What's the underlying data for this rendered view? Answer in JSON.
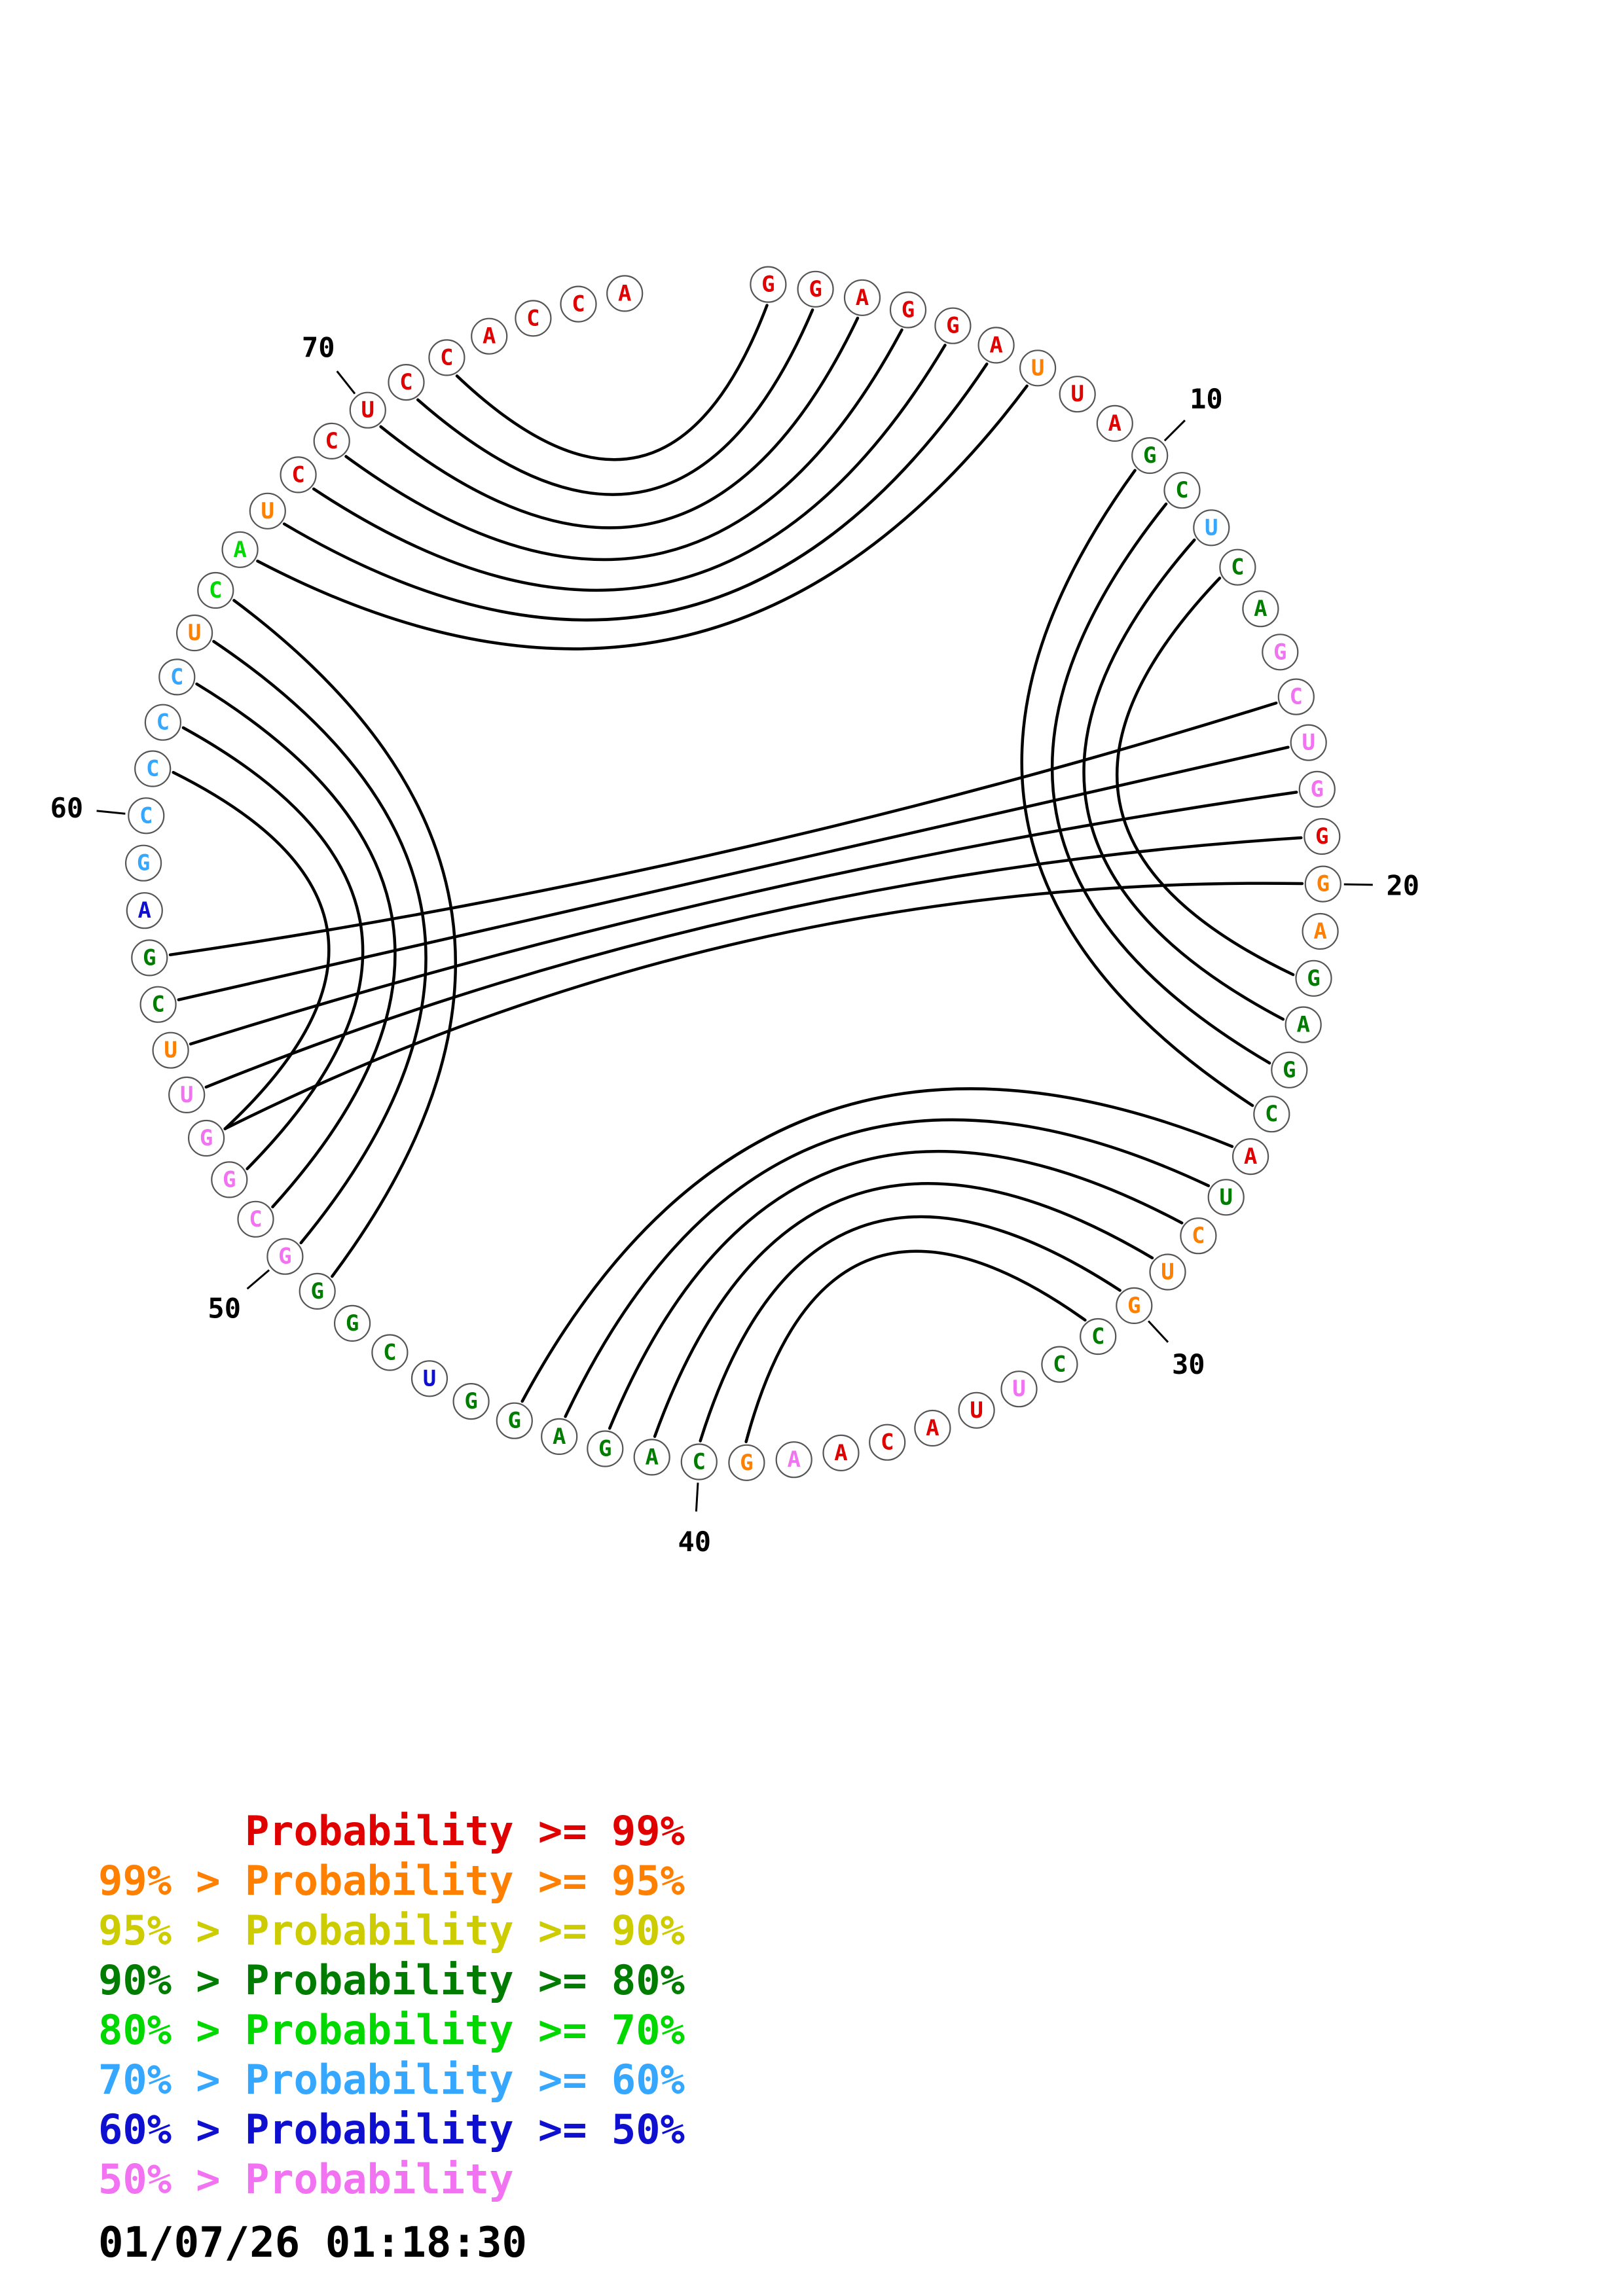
{
  "palette": {
    "red": "#e00000",
    "orange": "#ff7f00",
    "yellow": "#cccc00",
    "dgreen": "#007c00",
    "green": "#00d800",
    "sky": "#35a7ff",
    "blue": "#0f0fd0",
    "pink": "#f173f1",
    "arc": "#000000",
    "ring_outline": "#555555"
  },
  "plot": {
    "sequence": [
      "G",
      "G",
      "A",
      "G",
      "G",
      "A",
      "U",
      "U",
      "A",
      "G",
      "C",
      "U",
      "C",
      "A",
      "G",
      "C",
      "U",
      "G",
      "G",
      "G",
      "A",
      "G",
      "A",
      "G",
      "C",
      "A",
      "U",
      "C",
      "U",
      "G",
      "C",
      "C",
      "U",
      "U",
      "A",
      "C",
      "A",
      "A",
      "G",
      "C",
      "A",
      "G",
      "A",
      "G",
      "G",
      "U",
      "C",
      "G",
      "G",
      "G",
      "C",
      "G",
      "G",
      "U",
      "U",
      "C",
      "G",
      "A",
      "G",
      "C",
      "C",
      "C",
      "C",
      "U",
      "C",
      "A",
      "U",
      "C",
      "C",
      "U",
      "C",
      "C",
      "A",
      "C",
      "C",
      "A"
    ],
    "colors": [
      "red",
      "red",
      "red",
      "red",
      "red",
      "red",
      "orange",
      "red",
      "red",
      "dgreen",
      "dgreen",
      "sky",
      "dgreen",
      "dgreen",
      "pink",
      "pink",
      "pink",
      "pink",
      "red",
      "orange",
      "orange",
      "dgreen",
      "dgreen",
      "dgreen",
      "dgreen",
      "red",
      "dgreen",
      "orange",
      "orange",
      "orange",
      "dgreen",
      "dgreen",
      "pink",
      "red",
      "red",
      "red",
      "red",
      "pink",
      "orange",
      "dgreen",
      "dgreen",
      "dgreen",
      "dgreen",
      "dgreen",
      "dgreen",
      "blue",
      "dgreen",
      "dgreen",
      "dgreen",
      "pink",
      "pink",
      "pink",
      "pink",
      "pink",
      "orange",
      "dgreen",
      "dgreen",
      "blue",
      "sky",
      "sky",
      "sky",
      "sky",
      "sky",
      "orange",
      "green",
      "green",
      "orange",
      "red",
      "red",
      "red",
      "red",
      "red",
      "red",
      "red",
      "red",
      "red"
    ],
    "pairs": [
      [
        1,
        72
      ],
      [
        2,
        71
      ],
      [
        3,
        70
      ],
      [
        4,
        69
      ],
      [
        5,
        68
      ],
      [
        6,
        67
      ],
      [
        7,
        66
      ],
      [
        10,
        25
      ],
      [
        11,
        24
      ],
      [
        12,
        23
      ],
      [
        13,
        22
      ],
      [
        16,
        57
      ],
      [
        17,
        56
      ],
      [
        18,
        55
      ],
      [
        19,
        54
      ],
      [
        20,
        53
      ],
      [
        26,
        44
      ],
      [
        27,
        43
      ],
      [
        28,
        42
      ],
      [
        29,
        41
      ],
      [
        30,
        40
      ],
      [
        31,
        39
      ],
      [
        49,
        65
      ],
      [
        50,
        64
      ],
      [
        51,
        63
      ],
      [
        52,
        62
      ],
      [
        53,
        61
      ]
    ],
    "tick_labels": [
      {
        "pos": 10,
        "text": "10"
      },
      {
        "pos": 20,
        "text": "20"
      },
      {
        "pos": 30,
        "text": "30"
      },
      {
        "pos": 40,
        "text": "40"
      },
      {
        "pos": 50,
        "text": "50"
      },
      {
        "pos": 60,
        "text": "60"
      },
      {
        "pos": 70,
        "text": "70"
      }
    ]
  },
  "legend": {
    "items": [
      {
        "text": "      Probability >= 99%",
        "color": "red"
      },
      {
        "text": "99% > Probability >= 95%",
        "color": "orange"
      },
      {
        "text": "95% > Probability >= 90%",
        "color": "yellow"
      },
      {
        "text": "90% > Probability >= 80%",
        "color": "dgreen"
      },
      {
        "text": "80% > Probability >= 70%",
        "color": "green"
      },
      {
        "text": "70% > Probability >= 60%",
        "color": "sky"
      },
      {
        "text": "60% > Probability >= 50%",
        "color": "blue"
      },
      {
        "text": "50% > Probability",
        "color": "pink"
      }
    ],
    "timestamp": "01/07/26 01:18:30"
  }
}
